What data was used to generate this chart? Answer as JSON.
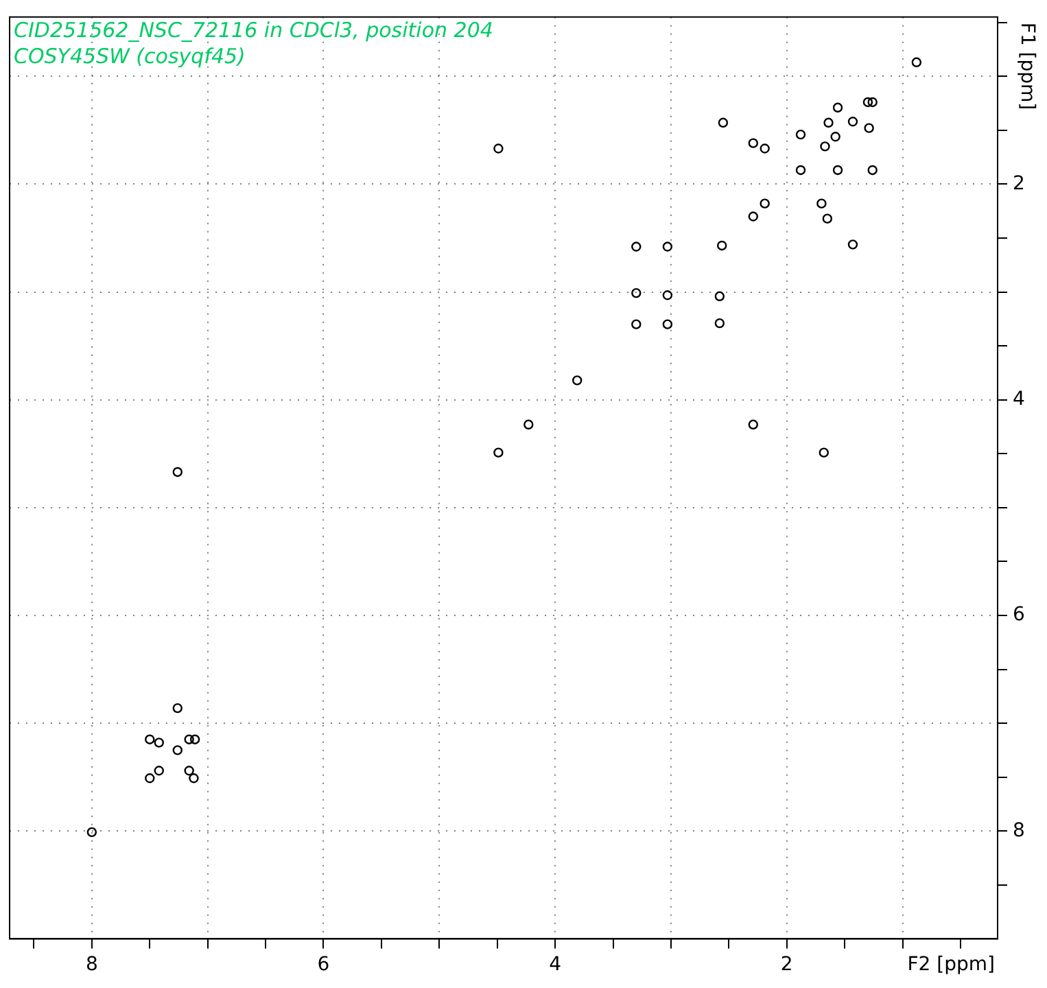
{
  "chart_data": {
    "type": "scatter",
    "title": "CID251562_NSC_72116 in CDCl3, position 204",
    "subtitle": "COSY45SW (cosyqf45)",
    "xlabel": "F2 [ppm]",
    "ylabel": "F1 [ppm]",
    "xlim": [
      8.71,
      0.18
    ],
    "ylim": [
      9.0,
      0.45
    ],
    "xticks": [
      {
        "value": 8.5,
        "label": null
      },
      8,
      {
        "value": 7.5,
        "label": null
      },
      {
        "value": 7,
        "label": null
      },
      {
        "value": 6.5,
        "label": null
      },
      6,
      {
        "value": 5.5,
        "label": null
      },
      {
        "value": 5,
        "label": null
      },
      {
        "value": 4.5,
        "label": null
      },
      4,
      {
        "value": 3.5,
        "label": null
      },
      {
        "value": 3,
        "label": null
      },
      {
        "value": 2.5,
        "label": null
      },
      2,
      {
        "value": 1.5,
        "label": null
      },
      {
        "value": 1,
        "label": null
      },
      {
        "value": 0.5,
        "label": null
      }
    ],
    "yticks": [
      {
        "value": 0.5,
        "label": null
      },
      {
        "value": 1,
        "label": null
      },
      {
        "value": 1.5,
        "label": null
      },
      2,
      {
        "value": 2.5,
        "label": null
      },
      {
        "value": 3,
        "label": null
      },
      {
        "value": 3.5,
        "label": null
      },
      4,
      {
        "value": 4.5,
        "label": null
      },
      {
        "value": 5,
        "label": null
      },
      {
        "value": 5.5,
        "label": null
      },
      6,
      {
        "value": 6.5,
        "label": null
      },
      {
        "value": 7,
        "label": null
      },
      {
        "value": 7.5,
        "label": null
      },
      8,
      {
        "value": 8.5,
        "label": null
      }
    ],
    "grid": true,
    "marker": "circle",
    "series": [
      {
        "color": "#000000",
        "x": [
          4.49,
          2.55,
          2.29,
          2.19,
          1.88,
          1.88,
          1.56,
          1.64,
          1.43,
          1.3,
          1.26,
          1.29,
          1.67,
          1.58,
          1.56,
          1.26,
          2.29,
          2.19,
          1.7,
          1.65,
          1.43,
          3.3,
          3.03,
          2.56,
          3.3,
          3.03,
          2.58,
          3.3,
          3.03,
          2.58,
          3.81,
          4.23,
          4.49,
          2.29,
          1.68,
          0.88,
          7.26,
          8.0,
          7.5,
          7.42,
          7.5,
          7.42,
          7.26,
          7.26,
          7.16,
          7.11,
          7.16,
          7.12
        ],
        "values": [
          1.67,
          1.43,
          1.62,
          1.67,
          1.54,
          1.87,
          1.29,
          1.43,
          1.42,
          1.24,
          1.24,
          1.48,
          1.65,
          1.56,
          1.87,
          1.87,
          2.3,
          2.18,
          2.18,
          2.32,
          2.56,
          2.58,
          2.58,
          2.57,
          3.01,
          3.03,
          3.04,
          3.3,
          3.3,
          3.29,
          3.82,
          4.23,
          4.49,
          4.23,
          4.49,
          0.87,
          4.67,
          8.01,
          7.15,
          7.18,
          7.51,
          7.44,
          6.86,
          7.25,
          7.15,
          7.15,
          7.44,
          7.51
        ]
      }
    ]
  }
}
